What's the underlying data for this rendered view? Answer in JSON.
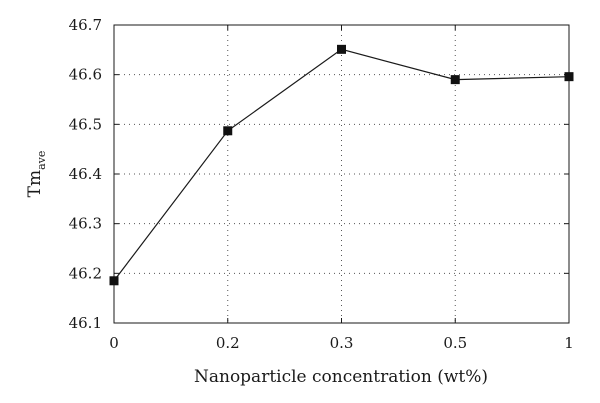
{
  "chart_data": {
    "type": "line",
    "categories": [
      "0",
      "0.2",
      "0.3",
      "0.5",
      "1"
    ],
    "values": [
      46.185,
      46.487,
      46.651,
      46.59,
      46.596
    ],
    "xlabel": "Nanoparticle concentration (wt%)",
    "ylabel": {
      "main": "Tm",
      "sub": "ave"
    },
    "ylim": [
      46.1,
      46.7
    ],
    "yticks": [
      "46.1",
      "46.2",
      "46.3",
      "46.4",
      "46.5",
      "46.6",
      "46.7"
    ],
    "grid": true,
    "grid_style": "dotted",
    "marker": "square",
    "line_color": "#1a1a1a",
    "marker_color": "#111111"
  }
}
